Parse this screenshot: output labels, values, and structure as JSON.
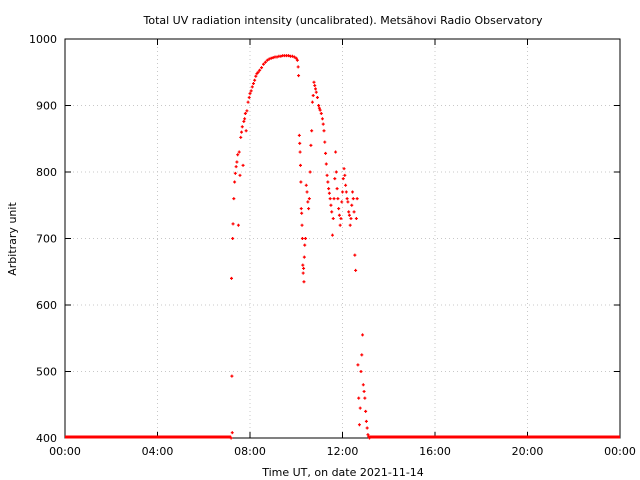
{
  "chart_data": {
    "type": "scatter",
    "title": "Total UV radiation intensity (uncalibrated). Metsähovi Radio Observatory",
    "xlabel": "Time UT, on date 2021-11-14",
    "ylabel": "Arbitrary unit",
    "xlim": [
      "00:00",
      "24:00"
    ],
    "ylim": [
      400,
      1000
    ],
    "x_ticks": [
      "00:00",
      "04:00",
      "08:00",
      "12:00",
      "16:00",
      "20:00",
      "00:00"
    ],
    "y_ticks": [
      400,
      500,
      600,
      700,
      800,
      900,
      1000
    ],
    "grid": true,
    "marker_color": "#ff0000",
    "series": [
      {
        "points": [
          [
            "07:11",
            400
          ],
          [
            "07:12",
            640
          ],
          [
            "07:13",
            493
          ],
          [
            "07:14",
            408
          ],
          [
            "07:15",
            700
          ],
          [
            "07:16",
            722
          ],
          [
            "07:18",
            760
          ],
          [
            "07:20",
            785
          ],
          [
            "07:22",
            798
          ],
          [
            "07:24",
            808
          ],
          [
            "07:26",
            815
          ],
          [
            "07:28",
            826
          ],
          [
            "07:30",
            720
          ],
          [
            "07:32",
            830
          ],
          [
            "07:34",
            795
          ],
          [
            "07:36",
            852
          ],
          [
            "07:38",
            860
          ],
          [
            "07:40",
            868
          ],
          [
            "07:42",
            810
          ],
          [
            "07:44",
            876
          ],
          [
            "07:46",
            880
          ],
          [
            "07:48",
            888
          ],
          [
            "07:50",
            862
          ],
          [
            "07:52",
            892
          ],
          [
            "07:55",
            905
          ],
          [
            "07:58",
            912
          ],
          [
            "08:00",
            918
          ],
          [
            "08:03",
            922
          ],
          [
            "08:06",
            928
          ],
          [
            "08:09",
            933
          ],
          [
            "08:12",
            938
          ],
          [
            "08:15",
            944
          ],
          [
            "08:18",
            948
          ],
          [
            "08:21",
            950
          ],
          [
            "08:25",
            953
          ],
          [
            "08:30",
            957
          ],
          [
            "08:35",
            962
          ],
          [
            "08:40",
            965
          ],
          [
            "08:45",
            968
          ],
          [
            "08:50",
            970
          ],
          [
            "08:55",
            971
          ],
          [
            "09:00",
            972
          ],
          [
            "09:05",
            973
          ],
          [
            "09:10",
            973
          ],
          [
            "09:15",
            974
          ],
          [
            "09:20",
            974
          ],
          [
            "09:25",
            975
          ],
          [
            "09:30",
            975
          ],
          [
            "09:35",
            975
          ],
          [
            "09:40",
            975
          ],
          [
            "09:45",
            974
          ],
          [
            "09:50",
            974
          ],
          [
            "09:55",
            973
          ],
          [
            "10:00",
            971
          ],
          [
            "10:03",
            968
          ],
          [
            "10:05",
            958
          ],
          [
            "10:06",
            945
          ],
          [
            "10:08",
            855
          ],
          [
            "10:09",
            843
          ],
          [
            "10:10",
            830
          ],
          [
            "10:11",
            810
          ],
          [
            "10:12",
            785
          ],
          [
            "10:13",
            745
          ],
          [
            "10:14",
            738
          ],
          [
            "10:15",
            720
          ],
          [
            "10:16",
            700
          ],
          [
            "10:17",
            660
          ],
          [
            "10:18",
            648
          ],
          [
            "10:19",
            655
          ],
          [
            "10:20",
            635
          ],
          [
            "10:21",
            672
          ],
          [
            "10:22",
            690
          ],
          [
            "10:24",
            700
          ],
          [
            "10:26",
            780
          ],
          [
            "10:28",
            770
          ],
          [
            "10:30",
            755
          ],
          [
            "10:32",
            745
          ],
          [
            "10:34",
            760
          ],
          [
            "10:36",
            800
          ],
          [
            "10:38",
            840
          ],
          [
            "10:40",
            862
          ],
          [
            "10:42",
            905
          ],
          [
            "10:44",
            915
          ],
          [
            "10:46",
            935
          ],
          [
            "10:48",
            930
          ],
          [
            "10:50",
            925
          ],
          [
            "10:52",
            920
          ],
          [
            "10:55",
            912
          ],
          [
            "10:58",
            900
          ],
          [
            "11:00",
            896
          ],
          [
            "11:02",
            893
          ],
          [
            "11:05",
            888
          ],
          [
            "11:08",
            880
          ],
          [
            "11:10",
            872
          ],
          [
            "11:12",
            862
          ],
          [
            "11:14",
            845
          ],
          [
            "11:16",
            828
          ],
          [
            "11:18",
            812
          ],
          [
            "11:20",
            795
          ],
          [
            "11:22",
            785
          ],
          [
            "11:24",
            775
          ],
          [
            "11:26",
            768
          ],
          [
            "11:28",
            760
          ],
          [
            "11:30",
            750
          ],
          [
            "11:32",
            740
          ],
          [
            "11:34",
            705
          ],
          [
            "11:36",
            730
          ],
          [
            "11:38",
            760
          ],
          [
            "11:40",
            790
          ],
          [
            "11:42",
            830
          ],
          [
            "11:44",
            800
          ],
          [
            "11:46",
            775
          ],
          [
            "11:48",
            760
          ],
          [
            "11:50",
            745
          ],
          [
            "11:52",
            735
          ],
          [
            "11:54",
            720
          ],
          [
            "11:56",
            730
          ],
          [
            "11:58",
            755
          ],
          [
            "12:00",
            770
          ],
          [
            "12:02",
            790
          ],
          [
            "12:04",
            805
          ],
          [
            "12:06",
            795
          ],
          [
            "12:08",
            780
          ],
          [
            "12:10",
            770
          ],
          [
            "12:12",
            760
          ],
          [
            "12:14",
            755
          ],
          [
            "12:16",
            740
          ],
          [
            "12:18",
            735
          ],
          [
            "12:20",
            720
          ],
          [
            "12:22",
            730
          ],
          [
            "12:24",
            750
          ],
          [
            "12:26",
            770
          ],
          [
            "12:28",
            760
          ],
          [
            "12:30",
            740
          ],
          [
            "12:32",
            675
          ],
          [
            "12:34",
            652
          ],
          [
            "12:36",
            730
          ],
          [
            "12:38",
            760
          ],
          [
            "12:40",
            510
          ],
          [
            "12:42",
            460
          ],
          [
            "12:44",
            420
          ],
          [
            "12:46",
            445
          ],
          [
            "12:48",
            500
          ],
          [
            "12:50",
            525
          ],
          [
            "12:52",
            555
          ],
          [
            "12:54",
            480
          ],
          [
            "12:56",
            470
          ],
          [
            "12:58",
            460
          ],
          [
            "13:00",
            440
          ],
          [
            "13:02",
            425
          ],
          [
            "13:04",
            415
          ],
          [
            "13:06",
            405
          ],
          [
            "13:08",
            402
          ],
          [
            "13:10",
            400
          ]
        ]
      }
    ]
  }
}
